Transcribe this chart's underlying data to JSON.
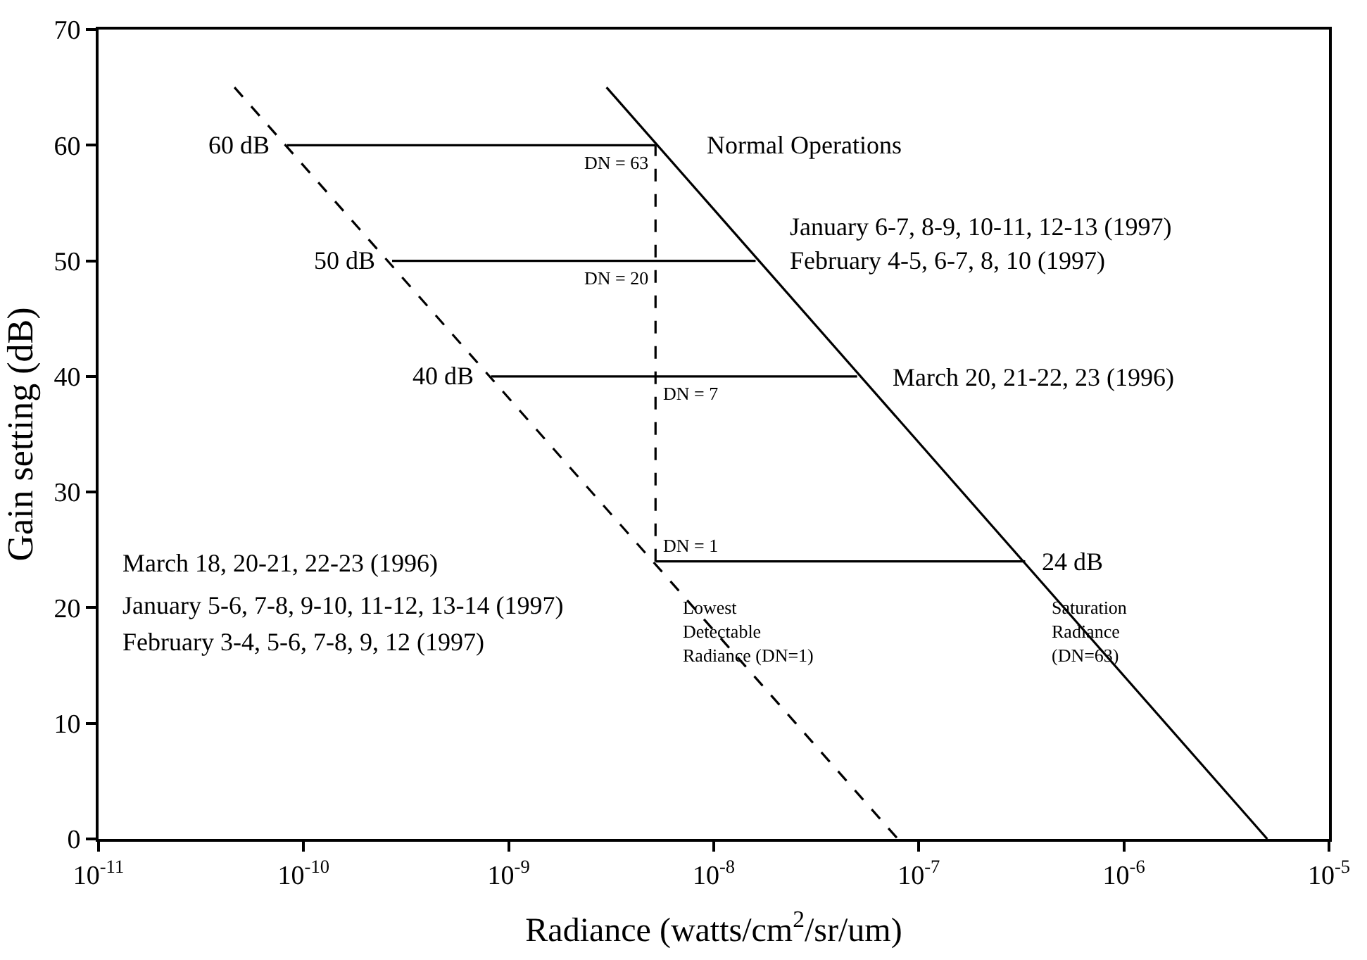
{
  "chart_data": {
    "type": "line",
    "xlabel": "Radiance (watts/cm$^{2}$/sr/um)",
    "ylabel": "Gain setting (dB)",
    "log": "x",
    "marker": "none",
    "xlim": [
      1e-11,
      1e-05
    ],
    "ylim": [
      0,
      70
    ],
    "xticks": [
      {
        "value": 1e-11,
        "label": "10$^{-11}$"
      },
      {
        "value": 1e-10,
        "label": "10$^{-10}$"
      },
      {
        "value": 1e-09,
        "label": "10$^{-9}$"
      },
      {
        "value": 1e-08,
        "label": "10$^{-8}$"
      },
      {
        "value": 1e-07,
        "label": "10$^{-7}$"
      },
      {
        "value": 1e-06,
        "label": "10$^{-6}$"
      },
      {
        "value": 1e-05,
        "label": "10$^{-5}$"
      }
    ],
    "yticks": [
      0,
      10,
      20,
      30,
      40,
      50,
      60,
      70
    ],
    "series": [
      {
        "color": "#000000",
        "line_style": "dashed",
        "x": [
          4.6e-11,
          7.9e-08
        ],
        "values": [
          65,
          0
        ]
      },
      {
        "color": "#000000",
        "line_style": "solid",
        "x": [
          3e-09,
          5e-06
        ],
        "values": [
          65,
          0
        ]
      },
      {
        "color": "#000000",
        "line_style": "solid",
        "x": [
          8.3e-11,
          5.2e-09
        ],
        "values": [
          60,
          60
        ]
      },
      {
        "color": "#000000",
        "line_style": "solid",
        "x": [
          2.7e-10,
          1.6e-08
        ],
        "values": [
          50,
          50
        ]
      },
      {
        "color": "#000000",
        "line_style": "solid",
        "x": [
          8.2e-10,
          5e-08
        ],
        "values": [
          40,
          40
        ]
      },
      {
        "color": "#000000",
        "line_style": "solid",
        "x": [
          5.2e-09,
          3.3e-07
        ],
        "values": [
          24,
          24
        ]
      },
      {
        "color": "#000000",
        "line_style": "dashed",
        "x": [
          5.2e-09,
          5.2e-09
        ],
        "values": [
          24,
          60
        ]
      }
    ],
    "annotations": [
      {
        "text": "60 dB",
        "x": 8.3e-11,
        "y": 60
      },
      {
        "text": "50 dB",
        "x": 2.7e-10,
        "y": 50
      },
      {
        "text": "40 dB",
        "x": 8.2e-10,
        "y": 40
      },
      {
        "text": "24 dB",
        "x": 3.3e-07,
        "y": 24
      },
      {
        "text": "DN = 63",
        "x": 5.2e-09,
        "y": 60
      },
      {
        "text": "DN = 20",
        "x": 5.2e-09,
        "y": 50
      },
      {
        "text": "DN = 7",
        "x": 5.2e-09,
        "y": 40
      },
      {
        "text": "DN = 1",
        "x": 5.2e-09,
        "y": 24
      },
      "Normal Operations",
      "January 6-7, 8-9, 10-11, 12-13 (1997)",
      "February 4-5, 6-7, 8, 10 (1997)",
      "March 20, 21-22, 23 (1996)",
      "March 18, 20-21, 22-23 (1996)",
      "January 5-6, 7-8, 9-10, 11-12, 13-14 (1997)",
      "February 3-4, 5-6, 7-8, 9, 12 (1997)",
      "Lowest\nDetectable\nRadiance (DN=1)",
      "Saturation\nRadiance\n(DN=63)"
    ]
  }
}
